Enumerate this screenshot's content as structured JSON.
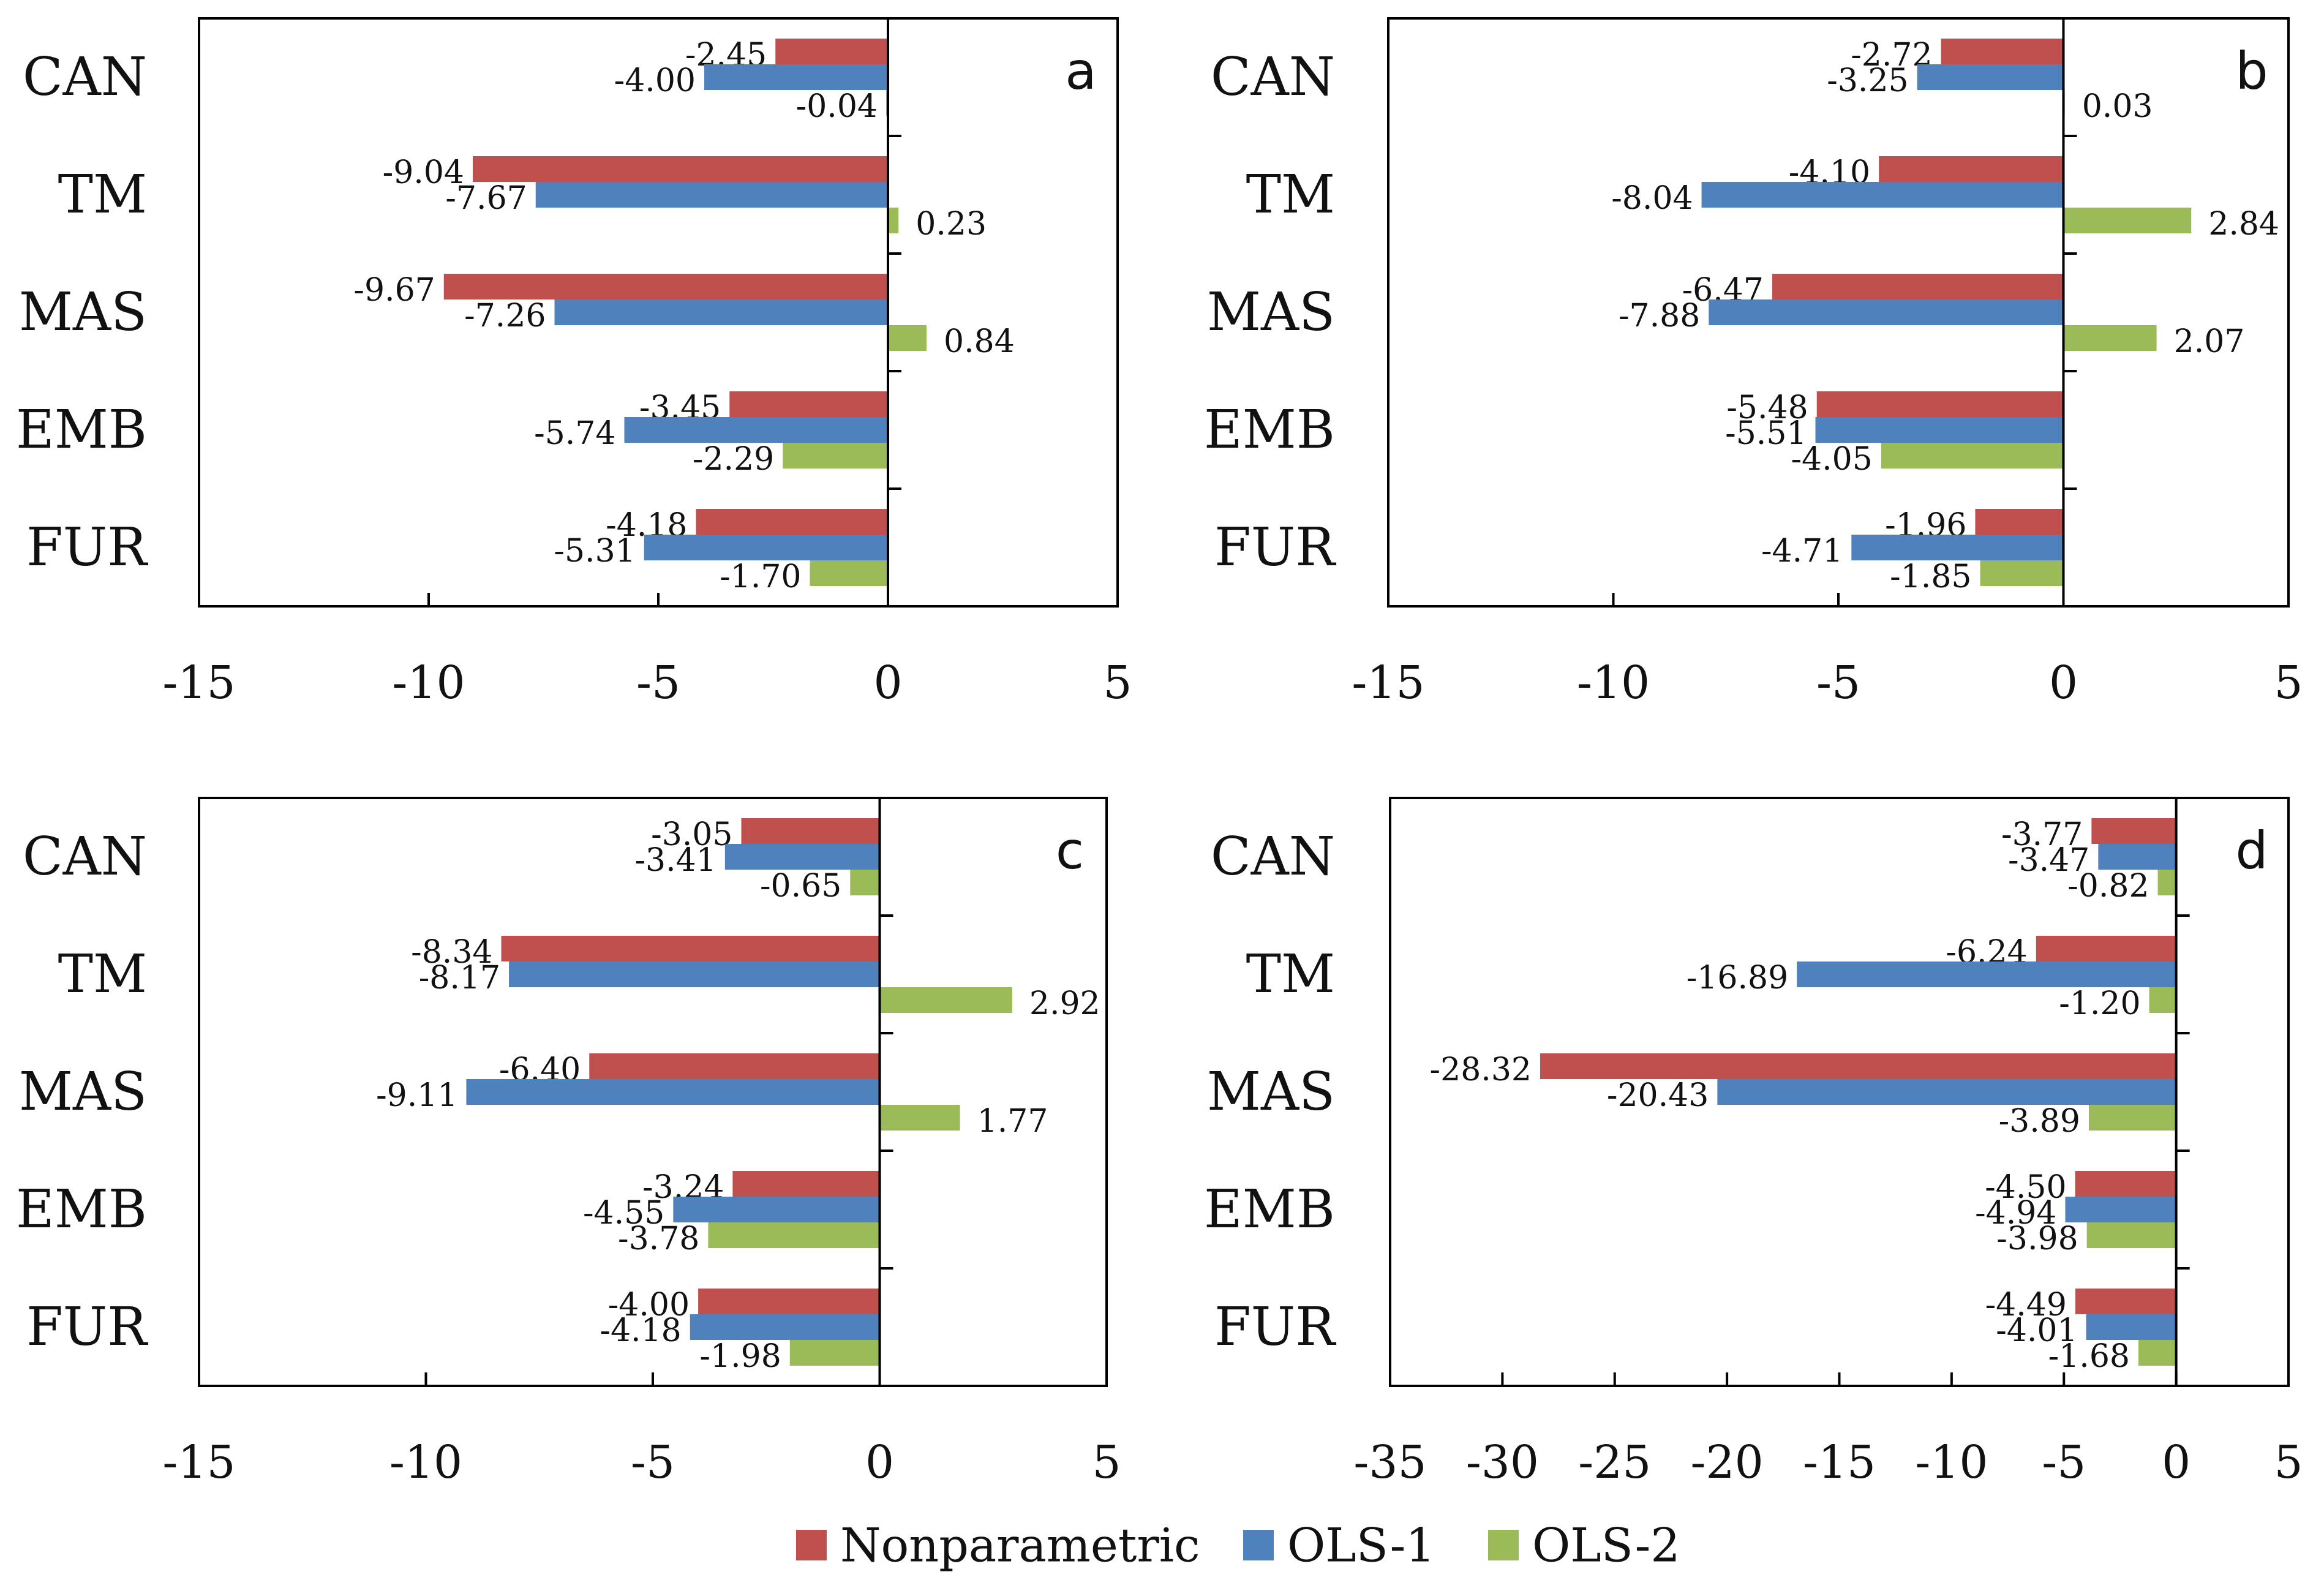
{
  "colors": {
    "Nonparametric": "#c0504d",
    "OLS-1": "#4f81bd",
    "OLS-2": "#9bbb59",
    "axis": "#000000"
  },
  "legend": [
    {
      "name": "Nonparametric"
    },
    {
      "name": "OLS-1"
    },
    {
      "name": "OLS-2"
    }
  ],
  "chart_data": [
    {
      "type": "bar",
      "orientation": "horizontal",
      "panel_label": "a",
      "categories": [
        "CAN",
        "TM",
        "MAS",
        "EMB",
        "FUR"
      ],
      "series": [
        {
          "name": "Nonparametric",
          "values": [
            -2.45,
            -9.04,
            -9.67,
            -3.45,
            -4.18
          ],
          "labels": [
            "-2.45",
            "-9.04",
            "-9.67",
            "-3.45",
            "-4.18"
          ]
        },
        {
          "name": "OLS-1",
          "values": [
            -4.0,
            -7.67,
            -7.26,
            -5.74,
            -5.31
          ],
          "labels": [
            "-4.00",
            "-7.67",
            "-7.26",
            "-5.74",
            "-5.31"
          ]
        },
        {
          "name": "OLS-2",
          "values": [
            -0.04,
            0.23,
            0.84,
            -2.29,
            -1.7
          ],
          "labels": [
            "-0.04",
            "0.23",
            "0.84",
            "-2.29",
            "-1.70"
          ]
        }
      ],
      "xlim": [
        -15,
        5
      ],
      "xticks": [
        -15,
        -10,
        -5,
        0,
        5
      ],
      "xtick_labels": [
        "-15",
        "-10",
        "-5",
        "0",
        "5"
      ]
    },
    {
      "type": "bar",
      "orientation": "horizontal",
      "panel_label": "b",
      "categories": [
        "CAN",
        "TM",
        "MAS",
        "EMB",
        "FUR"
      ],
      "series": [
        {
          "name": "Nonparametric",
          "values": [
            -2.72,
            -4.1,
            -6.47,
            -5.48,
            -1.96
          ],
          "labels": [
            "-2.72",
            "-4.10",
            "-6.47",
            "-5.48",
            "-1.96"
          ]
        },
        {
          "name": "OLS-1",
          "values": [
            -3.25,
            -8.04,
            -7.88,
            -5.51,
            -4.71
          ],
          "labels": [
            "-3.25",
            "-8.04",
            "-7.88",
            "-5.51",
            "-4.71"
          ]
        },
        {
          "name": "OLS-2",
          "values": [
            0.03,
            2.84,
            2.07,
            -4.05,
            -1.85
          ],
          "labels": [
            "0.03",
            "2.84",
            "2.07",
            "-4.05",
            "-1.85"
          ]
        }
      ],
      "xlim": [
        -15,
        5
      ],
      "xticks": [
        -15,
        -10,
        -5,
        0,
        5
      ],
      "xtick_labels": [
        "-15",
        "-10",
        "-5",
        "0",
        "5"
      ]
    },
    {
      "type": "bar",
      "orientation": "horizontal",
      "panel_label": "c",
      "categories": [
        "CAN",
        "TM",
        "MAS",
        "EMB",
        "FUR"
      ],
      "series": [
        {
          "name": "Nonparametric",
          "values": [
            -3.05,
            -8.34,
            -6.4,
            -3.24,
            -4.0
          ],
          "labels": [
            "-3.05",
            "-8.34",
            "-6.40",
            "-3.24",
            "-4.00"
          ]
        },
        {
          "name": "OLS-1",
          "values": [
            -3.41,
            -8.17,
            -9.11,
            -4.55,
            -4.18
          ],
          "labels": [
            "-3.41",
            "-8.17",
            "-9.11",
            "-4.55",
            "-4.18"
          ]
        },
        {
          "name": "OLS-2",
          "values": [
            -0.65,
            2.92,
            1.77,
            -3.78,
            -1.98
          ],
          "labels": [
            "-0.65",
            "2.92",
            "1.77",
            "-3.78",
            "-1.98"
          ]
        }
      ],
      "xlim": [
        -15,
        5
      ],
      "xticks": [
        -15,
        -10,
        -5,
        0,
        5
      ],
      "xtick_labels": [
        "-15",
        "-10",
        "-5",
        "0",
        "5"
      ]
    },
    {
      "type": "bar",
      "orientation": "horizontal",
      "panel_label": "d",
      "categories": [
        "CAN",
        "TM",
        "MAS",
        "EMB",
        "FUR"
      ],
      "series": [
        {
          "name": "Nonparametric",
          "values": [
            -3.77,
            -6.24,
            -28.32,
            -4.5,
            -4.49
          ],
          "labels": [
            "-3.77",
            "-6.24",
            "-28.32",
            "-4.50",
            "-4.49"
          ]
        },
        {
          "name": "OLS-1",
          "values": [
            -3.47,
            -16.89,
            -20.43,
            -4.94,
            -4.01
          ],
          "labels": [
            "-3.47",
            "-16.89",
            "-20.43",
            "-4.94",
            "-4.01"
          ]
        },
        {
          "name": "OLS-2",
          "values": [
            -0.82,
            -1.2,
            -3.89,
            -3.98,
            -1.68
          ],
          "labels": [
            "-0.82",
            "-1.20",
            "-3.89",
            "-3.98",
            "-1.68"
          ]
        }
      ],
      "xlim": [
        -35,
        5
      ],
      "xticks": [
        -35,
        -30,
        -25,
        -20,
        -15,
        -10,
        -5,
        0,
        5
      ],
      "xtick_labels": [
        "-35",
        "-30",
        "-25",
        "-20",
        "-15",
        "-10",
        "-5",
        "0",
        "5"
      ]
    }
  ]
}
